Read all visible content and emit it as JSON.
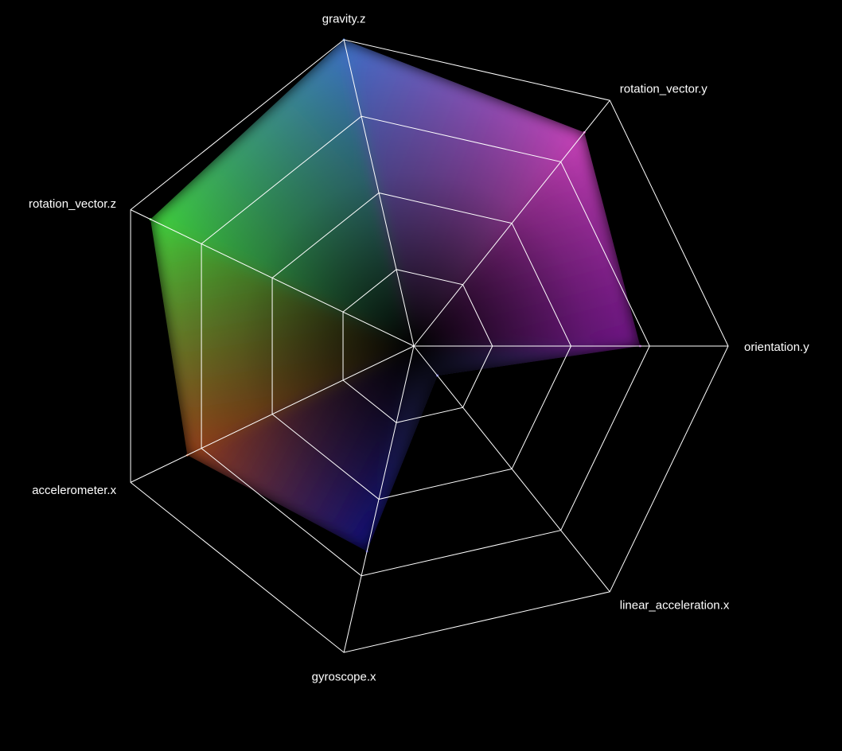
{
  "chart_data": {
    "type": "radar",
    "title": "",
    "axes": [
      "orientation.y",
      "linear_acceleration.x",
      "gyroscope.x",
      "accelerometer.x",
      "rotation_vector.z",
      "gravity.z",
      "rotation_vector.y"
    ],
    "values": [
      0.72,
      0.12,
      0.67,
      0.8,
      0.93,
      1.0,
      0.87
    ],
    "range": [
      0,
      1
    ],
    "grid_levels": 4,
    "grid": true,
    "legend": "none",
    "colors": {
      "background": "#000000",
      "grid": "#ffffff",
      "label": "#ffffff",
      "vertex_colors": [
        "#8a1aa8",
        "#5a5ad0",
        "#1414a0",
        "#b04a1e",
        "#44e040",
        "#3c70c8",
        "#e24ad0"
      ]
    }
  }
}
